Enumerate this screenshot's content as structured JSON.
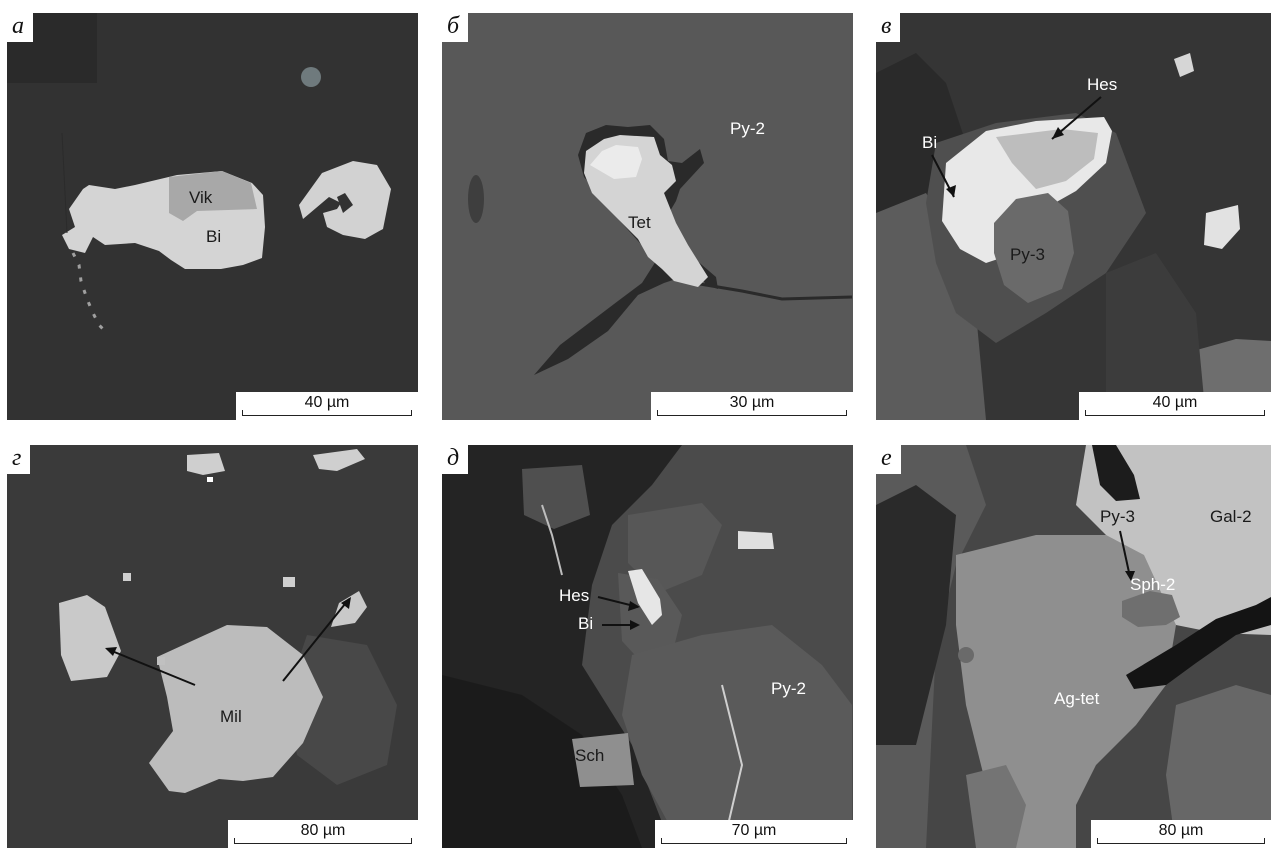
{
  "panels": [
    {
      "letter": "а",
      "scale": "40 µm",
      "labels": [
        "Vik",
        "Bi"
      ]
    },
    {
      "letter": "б",
      "scale": "30 µm",
      "labels": [
        "Py-2",
        "Tet"
      ]
    },
    {
      "letter": "в",
      "scale": "40 µm",
      "labels": [
        "Hes",
        "Bi",
        "Py-3"
      ]
    },
    {
      "letter": "г",
      "scale": "80 µm",
      "labels": [
        "Mil"
      ]
    },
    {
      "letter": "д",
      "scale": "70 µm",
      "labels": [
        "Hes",
        "Bi",
        "Py-2",
        "Sch"
      ]
    },
    {
      "letter": "е",
      "scale": "80 µm",
      "labels": [
        "Py-3",
        "Gal-2",
        "Sph-2",
        "Ag-tet"
      ]
    }
  ]
}
